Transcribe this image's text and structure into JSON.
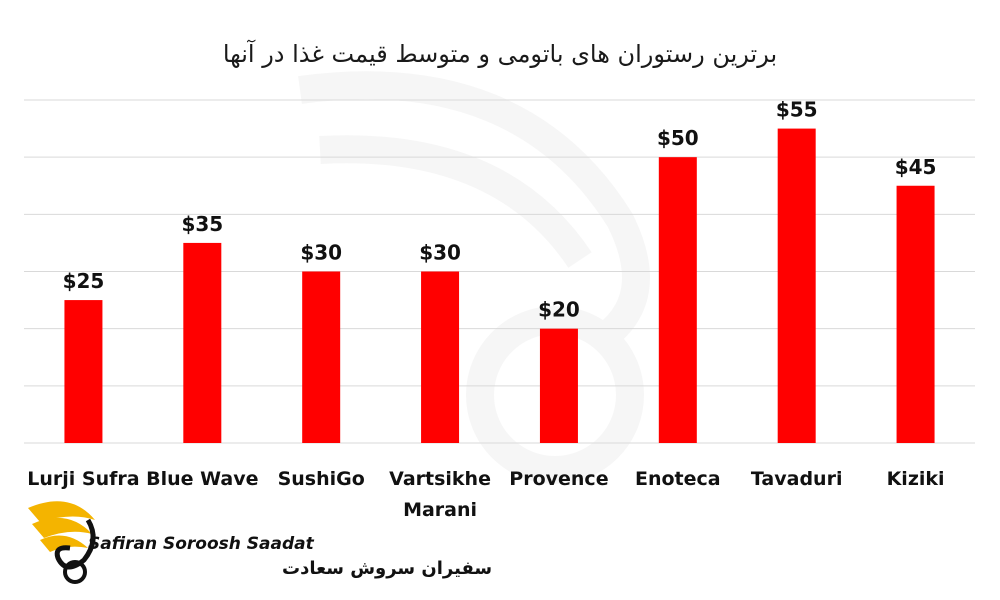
{
  "chart_data": {
    "type": "bar",
    "title": "برترین رستوران های باتومی و متوسط قیمت غذا در آنها",
    "categories": [
      "Lurji Sufra",
      "Blue Wave",
      "SushiGo",
      "Vartsikhe Marani",
      "Provence",
      "Enoteca",
      "Tavaduri",
      "Kiziki"
    ],
    "values": [
      25,
      35,
      30,
      30,
      20,
      50,
      55,
      45
    ],
    "value_labels": [
      "$25",
      "$35",
      "$30",
      "$30",
      "$20",
      "$50",
      "$55",
      "$45"
    ],
    "ylim": [
      0,
      60
    ],
    "grid": true,
    "bar_color": "#ff0000",
    "grid_color": "#d9d9d9"
  },
  "branding": {
    "name_en": "Safiran Soroosh Saadat",
    "name_fa": "سفیران سروش سعادت",
    "logo_icon": "wing-logo-icon",
    "accent_color": "#f4b400"
  }
}
